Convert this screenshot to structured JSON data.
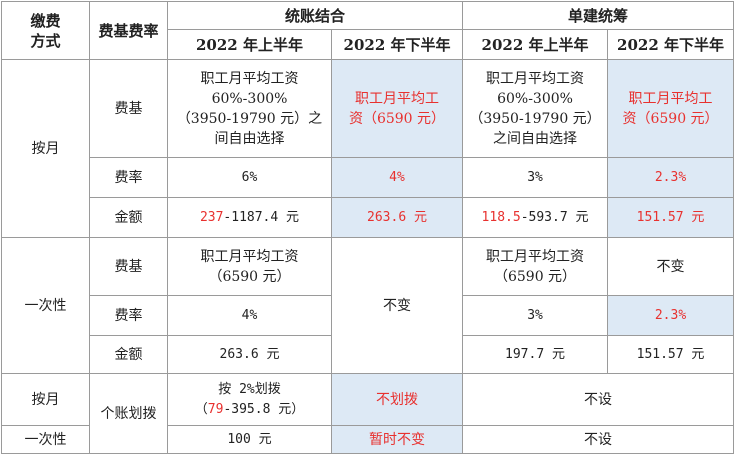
{
  "header": {
    "col_method": [
      "缴费",
      "方式"
    ],
    "col_base_rate": "费基费率",
    "group_combined": "统账结合",
    "group_single": "单建统筹",
    "h1_2022": "2022 年上半年",
    "h2_2022": "2022 年下半年"
  },
  "rows": {
    "monthly": {
      "label": "按月",
      "base": {
        "label": "费基",
        "comb_h1": [
          "职工月平均工资",
          "60%-300%",
          "（3950-19790 元）之",
          "间自由选择"
        ],
        "comb_h2": [
          "职工月平均工",
          "资（6590 元）"
        ],
        "single_h1": [
          "职工月平均工资",
          "60%-300%",
          "（3950-19790 元）",
          "之间自由选择"
        ],
        "single_h2": [
          "职工月平均工",
          "资（6590 元）"
        ]
      },
      "rate": {
        "label": "费率",
        "comb_h1": "6%",
        "comb_h2": "4%",
        "single_h1": "3%",
        "single_h2": "2.3%"
      },
      "amount": {
        "label": "金额",
        "comb_h1_red": "237",
        "comb_h1_rest": "-1187.4 元",
        "comb_h2": "263.6 元",
        "single_h1_red": "118.5",
        "single_h1_rest": "-593.7 元",
        "single_h2": "151.57 元"
      }
    },
    "lump": {
      "label": "一次性",
      "base": {
        "label": "费基",
        "comb_h1": [
          "职工月平均工资",
          "（6590 元）"
        ],
        "single_h1": [
          "职工月平均工资",
          "（6590 元）"
        ],
        "single_h2": "不变"
      },
      "comb_h2_merged": "不变",
      "rate": {
        "label": "费率",
        "comb_h1": "4%",
        "single_h1": "3%",
        "single_h2": "2.3%"
      },
      "amount": {
        "label": "金额",
        "comb_h1": "263.6 元",
        "single_h1": "197.7 元",
        "single_h2": "151.57 元"
      }
    },
    "personal": {
      "label": "个账划拨",
      "monthly_label": "按月",
      "monthly_h1_line1": "按 2%划拨",
      "monthly_h1_open": "（",
      "monthly_h1_red": "79",
      "monthly_h1_rest": "-395.8 元）",
      "monthly_h2": "不划拨",
      "monthly_single": "不设",
      "lump_label": "一次性",
      "lump_h1": "100 元",
      "lump_h2": "暂时不变",
      "lump_single": "不设"
    }
  }
}
